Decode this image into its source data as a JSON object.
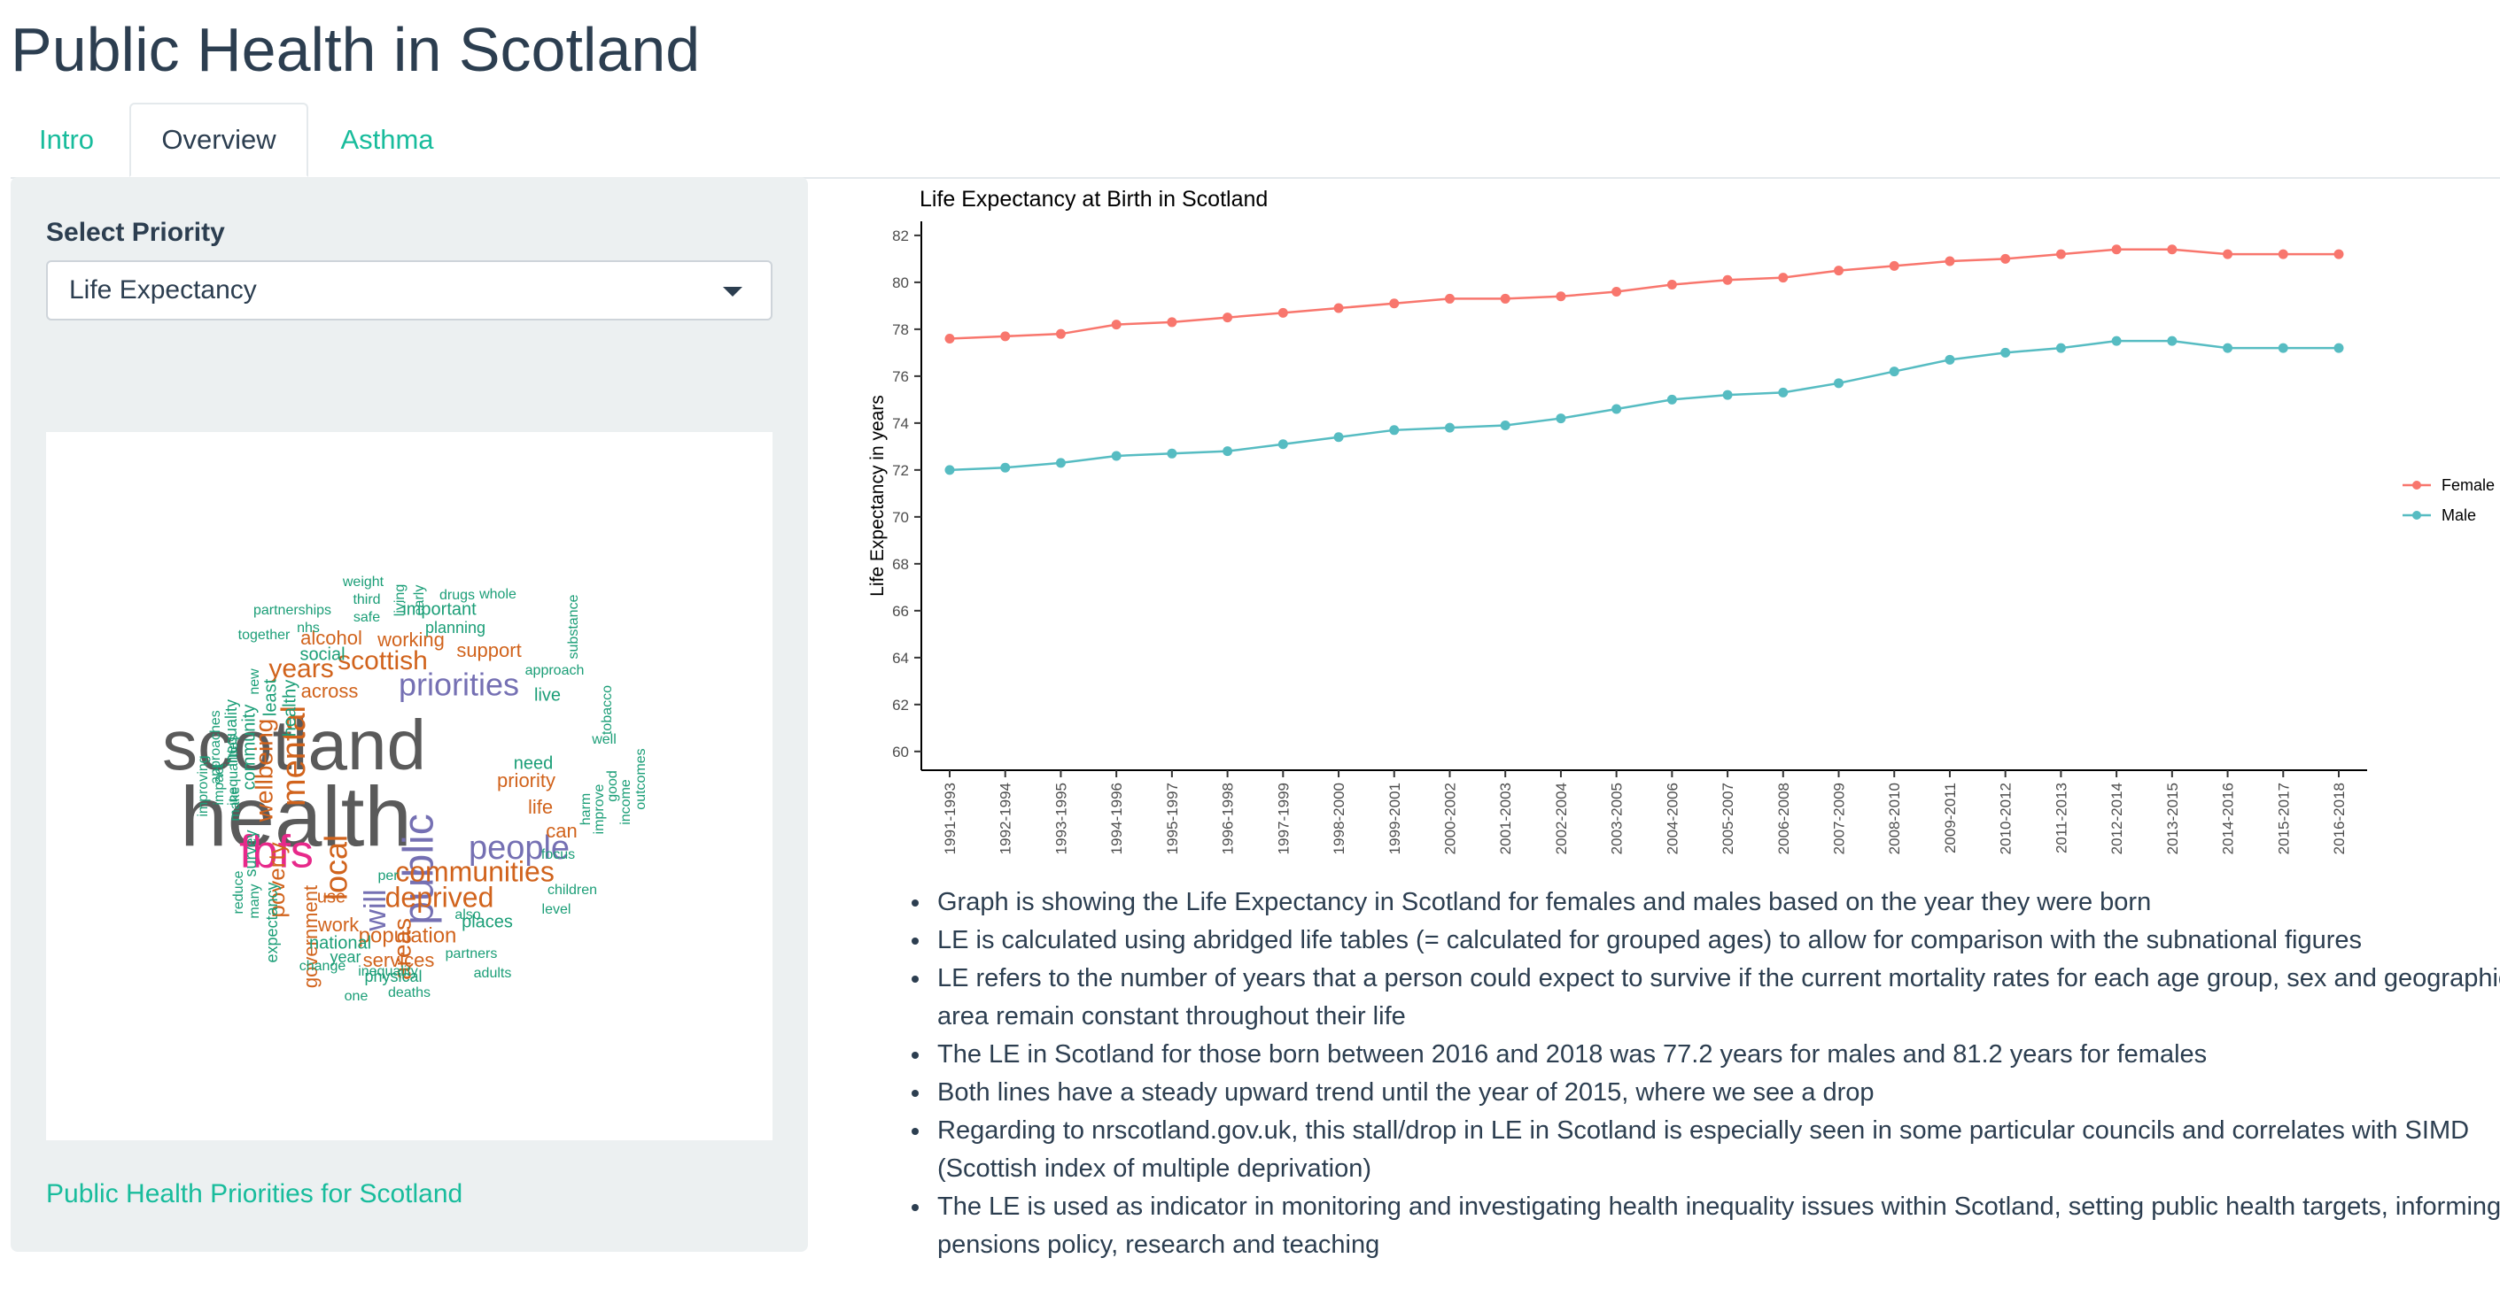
{
  "app": {
    "title": "Public Health in Scotland"
  },
  "tabs": [
    {
      "label": "Intro",
      "active": false
    },
    {
      "label": "Overview",
      "active": true
    },
    {
      "label": "Asthma",
      "active": false
    }
  ],
  "sidebar": {
    "select_label": "Select Priority",
    "select_value": "Life Expectancy",
    "link_text": "Public Health Priorities for Scotland"
  },
  "wordcloud": {
    "colors": {
      "gray": "#5a5a5a",
      "orange": "#d1631c",
      "purple": "#7570b3",
      "pink": "#e7298a",
      "teal": "#1b9e77"
    },
    "words": [
      {
        "text": "health",
        "color": "gray"
      },
      {
        "text": "scotland",
        "color": "gray"
      },
      {
        "text": "fbfs",
        "color": "pink"
      },
      {
        "text": "public",
        "color": "purple"
      },
      {
        "text": "people",
        "color": "purple"
      },
      {
        "text": "priorities",
        "color": "purple"
      },
      {
        "text": "will",
        "color": "purple"
      },
      {
        "text": "mental",
        "color": "orange"
      },
      {
        "text": "local",
        "color": "orange"
      },
      {
        "text": "communities",
        "color": "orange"
      },
      {
        "text": "deprived",
        "color": "orange"
      },
      {
        "text": "years",
        "color": "orange"
      },
      {
        "text": "scottish",
        "color": "orange"
      },
      {
        "text": "wellbeing",
        "color": "orange"
      },
      {
        "text": "areas",
        "color": "orange"
      },
      {
        "text": "poverty",
        "color": "orange"
      },
      {
        "text": "population",
        "color": "orange"
      },
      {
        "text": "government",
        "color": "orange"
      },
      {
        "text": "work",
        "color": "orange"
      },
      {
        "text": "services",
        "color": "orange"
      },
      {
        "text": "across",
        "color": "orange"
      },
      {
        "text": "working",
        "color": "orange"
      },
      {
        "text": "support",
        "color": "orange"
      },
      {
        "text": "alcohol",
        "color": "orange"
      },
      {
        "text": "priority",
        "color": "orange"
      },
      {
        "text": "life",
        "color": "orange"
      },
      {
        "text": "can",
        "color": "orange"
      },
      {
        "text": "use",
        "color": "orange"
      },
      {
        "text": "community",
        "color": "teal"
      },
      {
        "text": "inequality",
        "color": "teal"
      },
      {
        "text": "live",
        "color": "teal"
      },
      {
        "text": "need",
        "color": "teal"
      },
      {
        "text": "social",
        "color": "teal"
      },
      {
        "text": "important",
        "color": "teal"
      },
      {
        "text": "planning",
        "color": "teal"
      },
      {
        "text": "healthy",
        "color": "teal"
      },
      {
        "text": "least",
        "color": "teal"
      },
      {
        "text": "national",
        "color": "teal"
      },
      {
        "text": "places",
        "color": "teal"
      },
      {
        "text": "year",
        "color": "teal"
      },
      {
        "text": "physical",
        "color": "teal"
      },
      {
        "text": "survey",
        "color": "teal"
      },
      {
        "text": "expectancy",
        "color": "teal"
      },
      {
        "text": "approach",
        "color": "teal"
      },
      {
        "text": "focus",
        "color": "teal"
      },
      {
        "text": "children",
        "color": "teal"
      },
      {
        "text": "level",
        "color": "teal"
      },
      {
        "text": "partners",
        "color": "teal"
      },
      {
        "text": "adults",
        "color": "teal"
      },
      {
        "text": "change",
        "color": "teal"
      },
      {
        "text": "inequality",
        "color": "teal"
      },
      {
        "text": "deaths",
        "color": "teal"
      },
      {
        "text": "one",
        "color": "teal"
      },
      {
        "text": "also",
        "color": "teal"
      },
      {
        "text": "per",
        "color": "teal"
      },
      {
        "text": "harm",
        "color": "teal"
      },
      {
        "text": "improve",
        "color": "teal"
      },
      {
        "text": "good",
        "color": "teal"
      },
      {
        "text": "income",
        "color": "teal"
      },
      {
        "text": "outcomes",
        "color": "teal"
      },
      {
        "text": "well",
        "color": "teal"
      },
      {
        "text": "tobacco",
        "color": "teal"
      },
      {
        "text": "substance",
        "color": "teal"
      },
      {
        "text": "weight",
        "color": "teal"
      },
      {
        "text": "third",
        "color": "teal"
      },
      {
        "text": "safe",
        "color": "teal"
      },
      {
        "text": "nhs",
        "color": "teal"
      },
      {
        "text": "together",
        "color": "teal"
      },
      {
        "text": "partnerships",
        "color": "teal"
      },
      {
        "text": "living",
        "color": "teal"
      },
      {
        "text": "early",
        "color": "teal"
      },
      {
        "text": "drugs",
        "color": "teal"
      },
      {
        "text": "whole",
        "color": "teal"
      },
      {
        "text": "approaches",
        "color": "teal"
      },
      {
        "text": "inequalities",
        "color": "teal"
      },
      {
        "text": "improving",
        "color": "teal"
      },
      {
        "text": "impact",
        "color": "teal"
      },
      {
        "text": "make",
        "color": "teal"
      },
      {
        "text": "new",
        "color": "teal"
      },
      {
        "text": "reduce",
        "color": "teal"
      },
      {
        "text": "many",
        "color": "teal"
      }
    ]
  },
  "chart_data": {
    "type": "line",
    "title": "Life Expectancy at Birth in Scotland",
    "xlabel": "",
    "ylabel": "Life Expectancy in years",
    "ylim": [
      59.2,
      82.6
    ],
    "yticks": [
      60,
      62,
      64,
      66,
      68,
      70,
      72,
      74,
      76,
      78,
      80,
      82
    ],
    "grid": false,
    "legend_position": "right",
    "categories": [
      "1991-1993",
      "1992-1994",
      "1993-1995",
      "1994-1996",
      "1995-1997",
      "1996-1998",
      "1997-1999",
      "1998-2000",
      "1999-2001",
      "2000-2002",
      "2001-2003",
      "2002-2004",
      "2003-2005",
      "2004-2006",
      "2005-2007",
      "2006-2008",
      "2007-2009",
      "2008-2010",
      "2009-2011",
      "2010-2012",
      "2011-2013",
      "2012-2014",
      "2013-2015",
      "2014-2016",
      "2015-2017",
      "2016-2018"
    ],
    "series": [
      {
        "name": "Female",
        "color": "#f8766d",
        "values": [
          77.6,
          77.7,
          77.8,
          78.2,
          78.3,
          78.5,
          78.7,
          78.9,
          79.1,
          79.3,
          79.3,
          79.4,
          79.6,
          79.9,
          80.1,
          80.2,
          80.5,
          80.7,
          80.9,
          81.0,
          81.2,
          81.4,
          81.4,
          81.2,
          81.2,
          81.2
        ]
      },
      {
        "name": "Male",
        "color": "#56bcc2",
        "values": [
          72.0,
          72.1,
          72.3,
          72.6,
          72.7,
          72.8,
          73.1,
          73.4,
          73.7,
          73.8,
          73.9,
          74.2,
          74.6,
          75.0,
          75.2,
          75.3,
          75.7,
          76.2,
          76.7,
          77.0,
          77.2,
          77.5,
          77.5,
          77.2,
          77.2,
          77.2
        ]
      }
    ]
  },
  "notes": [
    "Graph is showing the Life Expectancy in Scotland for females and males based on the year they were born",
    "LE is calculated using abridged life tables (= calculated for grouped ages) to allow for comparison with the subnational figures",
    "LE refers to the number of years that a person could expect to survive if the current mortality rates for each age group, sex and geographic area remain constant throughout their life",
    "The LE in Scotland for those born between 2016 and 2018 was 77.2 years for males and 81.2 years for females",
    "Both lines have a steady upward trend until the year of 2015, where we see a drop",
    "Regarding to nrscotland.gov.uk, this stall/drop in LE in Scotland is especially seen in some particular councils and correlates with SIMD (Scottish index of multiple deprivation)",
    "The LE is used as indicator in monitoring and investigating health inequality issues within Scotland, setting public health targets, informing pensions policy, research and teaching"
  ]
}
